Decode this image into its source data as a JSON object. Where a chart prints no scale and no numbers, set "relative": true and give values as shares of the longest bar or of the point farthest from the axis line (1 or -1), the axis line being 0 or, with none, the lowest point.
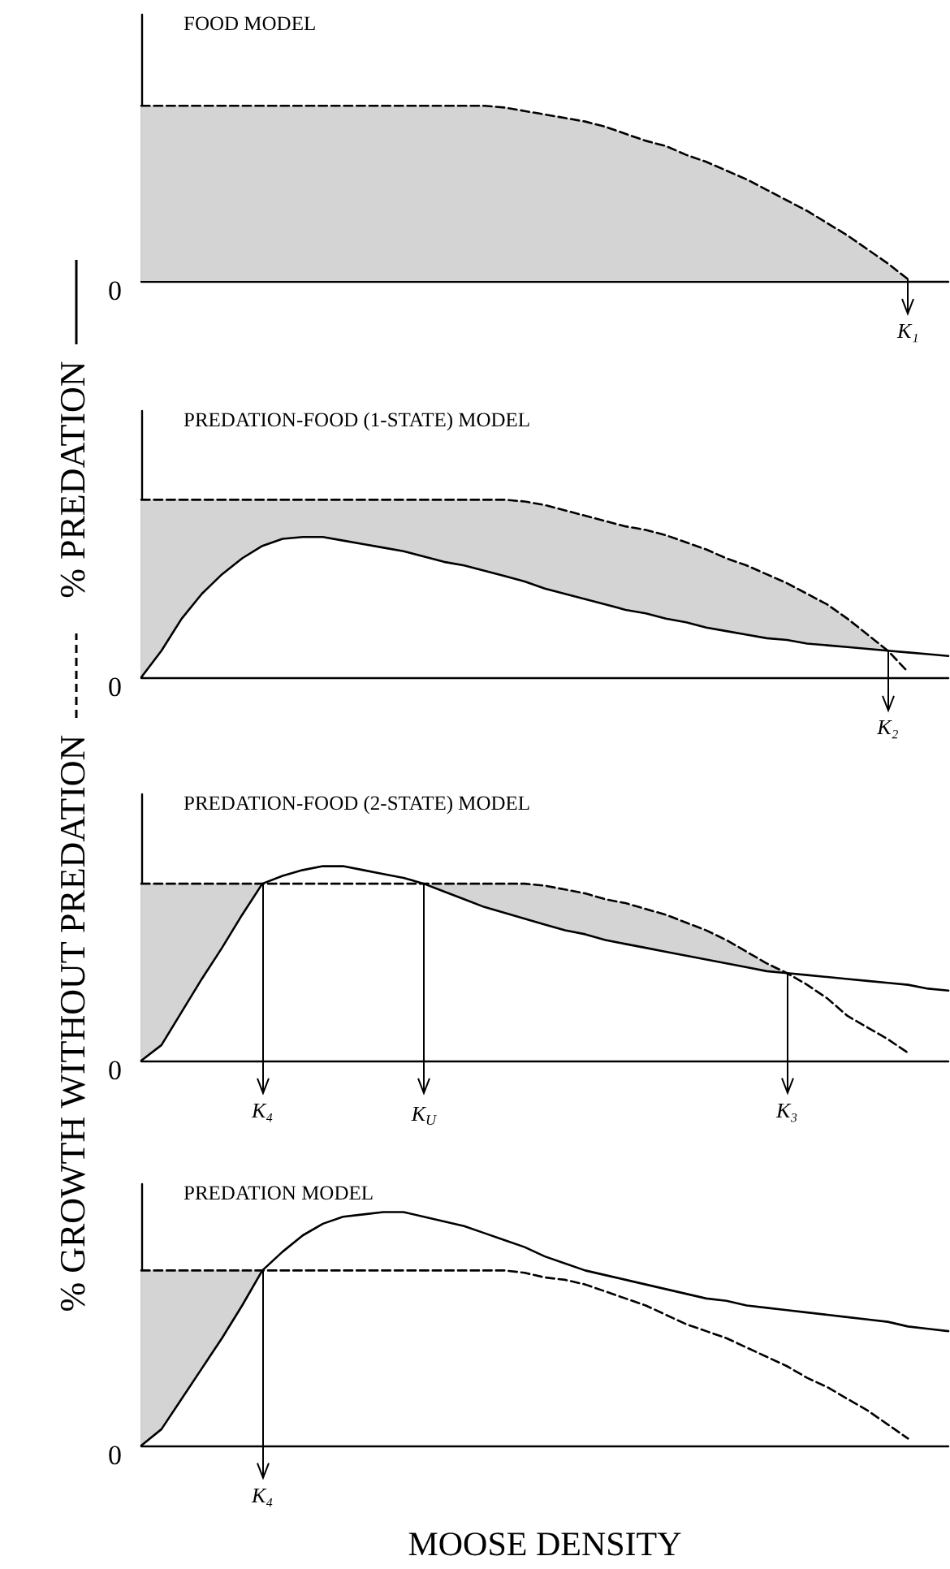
{
  "chart_data": [
    {
      "type": "line",
      "title": "FOOD MODEL",
      "relative": true,
      "tick_labels": false,
      "marker": "none",
      "categories": [
        null,
        null,
        null,
        null,
        null,
        null,
        null,
        null,
        null,
        null,
        null,
        null,
        null,
        null,
        null,
        null,
        null,
        null,
        null,
        null,
        null,
        null,
        null,
        null,
        null,
        null,
        null,
        null,
        null,
        null,
        null,
        null,
        null,
        null,
        null,
        null,
        null,
        null,
        null,
        null,
        null
      ],
      "annotations": [
        "0",
        "K₁"
      ],
      "series": [
        {
          "color": "#000000",
          "line_style": "dashed",
          "values": [
            1,
            1,
            1,
            1,
            1,
            1,
            1,
            1,
            1,
            1,
            1,
            1,
            1,
            1,
            1,
            1,
            1,
            1,
            0.99,
            0.97,
            0.95,
            0.93,
            0.91,
            0.88,
            0.84,
            0.8,
            0.77,
            0.72,
            0.68,
            0.63,
            0.58,
            0.52,
            0.46,
            0.4,
            0.33,
            0.26,
            0.18,
            0.1,
            0.01,
            null,
            null
          ],
          "lower": [
            0,
            0,
            0,
            0,
            0,
            0,
            0,
            0,
            0,
            0,
            0,
            0,
            0,
            0,
            0,
            0,
            0,
            0,
            0,
            0,
            0,
            0,
            0,
            0,
            0,
            0,
            0,
            0,
            0,
            0,
            0,
            0,
            0,
            0,
            0,
            0,
            0,
            0,
            0,
            null,
            null
          ],
          "upper": [
            1,
            1,
            1,
            1,
            1,
            1,
            1,
            1,
            1,
            1,
            1,
            1,
            1,
            1,
            1,
            1,
            1,
            1,
            0.99,
            0.97,
            0.95,
            0.93,
            0.91,
            0.88,
            0.84,
            0.8,
            0.77,
            0.72,
            0.68,
            0.63,
            0.58,
            0.52,
            0.46,
            0.4,
            0.33,
            0.26,
            0.18,
            0.1,
            0.01,
            null,
            null
          ]
        }
      ]
    },
    {
      "type": "line",
      "title": "PREDATION-FOOD (1-STATE) MODEL",
      "relative": true,
      "tick_labels": false,
      "marker": "none",
      "legend": "left",
      "categories": [
        null,
        null,
        null,
        null,
        null,
        null,
        null,
        null,
        null,
        null,
        null,
        null,
        null,
        null,
        null,
        null,
        null,
        null,
        null,
        null,
        null,
        null,
        null,
        null,
        null,
        null,
        null,
        null,
        null,
        null,
        null,
        null,
        null,
        null,
        null,
        null,
        null,
        null,
        null,
        null,
        null
      ],
      "annotations": [
        "0",
        "K₂"
      ],
      "series": [
        {
          "name": "% GROWTH WITHOUT PREDATION",
          "color": "#000000",
          "line_style": "dashed",
          "values": [
            1,
            1,
            1,
            1,
            1,
            1,
            1,
            1,
            1,
            1,
            1,
            1,
            1,
            1,
            1,
            1,
            1,
            1,
            1,
            0.99,
            0.97,
            0.94,
            0.91,
            0.88,
            0.85,
            0.83,
            0.8,
            0.76,
            0.72,
            0.67,
            0.63,
            0.58,
            0.53,
            0.47,
            0.41,
            0.33,
            0.24,
            0.15,
            0.03,
            null,
            null
          ],
          "lower": [
            0,
            0.15,
            0.33,
            0.47,
            0.58,
            0.67,
            0.74,
            0.78,
            0.79,
            0.79,
            0.77,
            0.75,
            0.73,
            0.71,
            0.68,
            0.65,
            0.63,
            0.6,
            0.57,
            0.54,
            0.5,
            0.47,
            0.44,
            0.41,
            0.38,
            0.36,
            0.33,
            0.31,
            0.28,
            0.26,
            0.24,
            0.22,
            0.21,
            0.19,
            0.18,
            0.17,
            0.16,
            0.15,
            null,
            null,
            null
          ],
          "upper": [
            1,
            1,
            1,
            1,
            1,
            1,
            1,
            1,
            1,
            1,
            1,
            1,
            1,
            1,
            1,
            1,
            1,
            1,
            1,
            0.99,
            0.97,
            0.94,
            0.91,
            0.88,
            0.85,
            0.83,
            0.8,
            0.76,
            0.72,
            0.67,
            0.63,
            0.58,
            0.53,
            0.47,
            0.41,
            0.33,
            0.24,
            0.15,
            null,
            null,
            null
          ]
        },
        {
          "name": "% PREDATION",
          "color": "#000000",
          "line_style": "solid",
          "values": [
            0,
            0.15,
            0.33,
            0.47,
            0.58,
            0.67,
            0.74,
            0.78,
            0.79,
            0.79,
            0.77,
            0.75,
            0.73,
            0.71,
            0.68,
            0.65,
            0.63,
            0.6,
            0.57,
            0.54,
            0.5,
            0.47,
            0.44,
            0.41,
            0.38,
            0.36,
            0.33,
            0.31,
            0.28,
            0.26,
            0.24,
            0.22,
            0.21,
            0.19,
            0.18,
            0.17,
            0.16,
            0.15,
            0.14,
            0.13,
            0.12
          ]
        }
      ]
    },
    {
      "type": "line",
      "title": "PREDATION-FOOD (2-STATE) MODEL",
      "relative": true,
      "tick_labels": false,
      "marker": "none",
      "categories": [
        null,
        null,
        null,
        null,
        null,
        null,
        null,
        null,
        null,
        null,
        null,
        null,
        null,
        null,
        null,
        null,
        null,
        null,
        null,
        null,
        null,
        null,
        null,
        null,
        null,
        null,
        null,
        null,
        null,
        null,
        null,
        null,
        null,
        null,
        null,
        null,
        null,
        null,
        null,
        null,
        null
      ],
      "annotations": [
        "0",
        "K₄",
        "K$_{U}$",
        "K₃"
      ],
      "series": [
        {
          "color": "#000000",
          "line_style": "dashed",
          "values": [
            0.91,
            0.91,
            0.91,
            0.91,
            0.91,
            0.91,
            0.91,
            0.91,
            0.91,
            0.91,
            0.91,
            0.91,
            0.91,
            0.91,
            0.91,
            0.91,
            0.91,
            0.91,
            0.91,
            0.91,
            0.9,
            0.88,
            0.86,
            0.83,
            0.81,
            0.78,
            0.75,
            0.71,
            0.67,
            0.62,
            0.56,
            0.5,
            0.45,
            0.39,
            0.32,
            0.23,
            0.17,
            0.11,
            0.04,
            null,
            null
          ],
          "lower": [
            0,
            0.08,
            0.25,
            0.42,
            0.58,
            0.75,
            0.91,
            null,
            null,
            null,
            null,
            null,
            null,
            null,
            0.91,
            0.87,
            0.83,
            0.79,
            0.76,
            0.73,
            0.7,
            0.67,
            0.65,
            0.62,
            0.6,
            0.58,
            0.56,
            0.54,
            0.52,
            0.5,
            0.48,
            0.46,
            0.45,
            null,
            null,
            null,
            null,
            null,
            null,
            null,
            null
          ],
          "upper": [
            0.91,
            0.91,
            0.91,
            0.91,
            0.91,
            0.91,
            0.91,
            null,
            null,
            null,
            null,
            null,
            null,
            null,
            0.91,
            0.91,
            0.91,
            0.91,
            0.91,
            0.91,
            0.9,
            0.88,
            0.86,
            0.83,
            0.81,
            0.78,
            0.75,
            0.71,
            0.67,
            0.62,
            0.56,
            0.5,
            0.45,
            null,
            null,
            null,
            null,
            null,
            null,
            null,
            null
          ]
        },
        {
          "color": "#000000",
          "line_style": "solid",
          "values": [
            0,
            0.08,
            0.25,
            0.42,
            0.58,
            0.75,
            0.91,
            0.95,
            0.98,
            1,
            1,
            0.98,
            0.96,
            0.94,
            0.91,
            0.87,
            0.83,
            0.79,
            0.76,
            0.73,
            0.7,
            0.67,
            0.65,
            0.62,
            0.6,
            0.58,
            0.56,
            0.54,
            0.52,
            0.5,
            0.48,
            0.46,
            0.45,
            0.44,
            0.43,
            0.42,
            0.41,
            0.4,
            0.39,
            0.37,
            0.36
          ]
        }
      ]
    },
    {
      "type": "line",
      "title": "PREDATION MODEL",
      "xlabel": "MOOSE DENSITY",
      "relative": true,
      "tick_labels": false,
      "marker": "none",
      "categories": [
        null,
        null,
        null,
        null,
        null,
        null,
        null,
        null,
        null,
        null,
        null,
        null,
        null,
        null,
        null,
        null,
        null,
        null,
        null,
        null,
        null,
        null,
        null,
        null,
        null,
        null,
        null,
        null,
        null,
        null,
        null,
        null,
        null,
        null,
        null,
        null,
        null,
        null,
        null,
        null,
        null
      ],
      "annotations": [
        "0",
        "K₄"
      ],
      "series": [
        {
          "color": "#000000",
          "line_style": "dashed",
          "values": [
            0.75,
            0.75,
            0.75,
            0.75,
            0.75,
            0.75,
            0.75,
            0.75,
            0.75,
            0.75,
            0.75,
            0.75,
            0.75,
            0.75,
            0.75,
            0.75,
            0.75,
            0.75,
            0.75,
            0.74,
            0.72,
            0.71,
            0.69,
            0.66,
            0.63,
            0.6,
            0.56,
            0.52,
            0.49,
            0.46,
            0.42,
            0.38,
            0.34,
            0.29,
            0.25,
            0.2,
            0.15,
            0.09,
            0.03,
            null,
            null
          ],
          "lower": [
            0,
            0.07,
            0.2,
            0.33,
            0.46,
            0.6,
            0.75,
            null,
            null,
            null,
            null,
            null,
            null,
            null,
            null,
            null,
            null,
            null,
            null,
            null,
            null,
            null,
            null,
            null,
            null,
            null,
            null,
            null,
            null,
            null,
            null,
            null,
            null,
            null,
            null,
            null,
            null,
            null,
            null,
            null,
            null
          ],
          "upper": [
            0.75,
            0.75,
            0.75,
            0.75,
            0.75,
            0.75,
            0.75,
            null,
            null,
            null,
            null,
            null,
            null,
            null,
            null,
            null,
            null,
            null,
            null,
            null,
            null,
            null,
            null,
            null,
            null,
            null,
            null,
            null,
            null,
            null,
            null,
            null,
            null,
            null,
            null,
            null,
            null,
            null,
            null,
            null,
            null
          ]
        },
        {
          "color": "#000000",
          "line_style": "solid",
          "values": [
            0,
            0.07,
            0.2,
            0.33,
            0.46,
            0.6,
            0.75,
            0.83,
            0.9,
            0.95,
            0.98,
            0.99,
            1,
            1,
            0.98,
            0.96,
            0.94,
            0.91,
            0.88,
            0.85,
            0.81,
            0.78,
            0.75,
            0.73,
            0.71,
            0.69,
            0.67,
            0.65,
            0.63,
            0.62,
            0.6,
            0.59,
            0.58,
            0.57,
            0.56,
            0.55,
            0.54,
            0.53,
            0.51,
            0.5,
            0.49
          ]
        }
      ]
    }
  ]
}
